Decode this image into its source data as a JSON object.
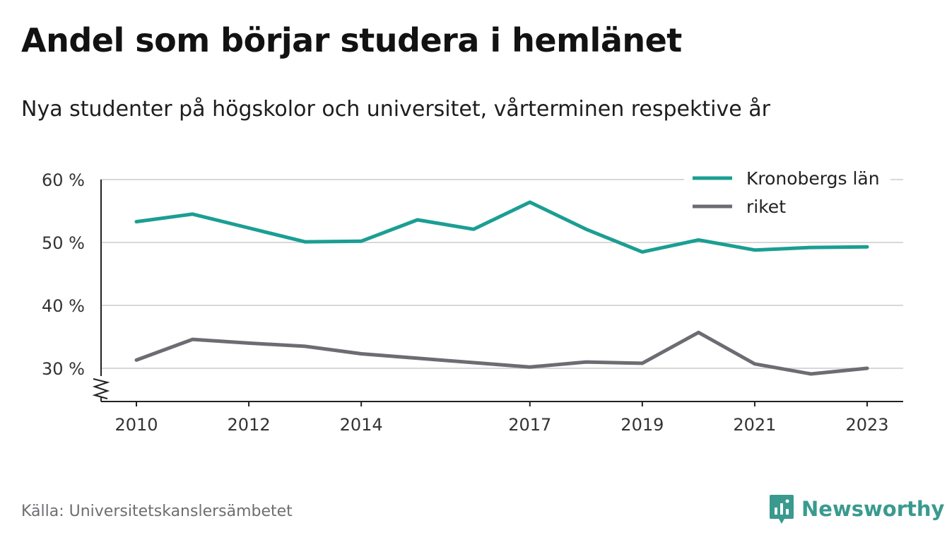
{
  "title": "Andel som börjar studera i hemlänet",
  "subtitle": "Nya studenter på högskolor och universitet, vårterminen respektive år",
  "source": "Källa: Universitetskanslersämbetet",
  "brand": {
    "name": "Newsworthy",
    "icon": "newsworthy-logo-icon",
    "color": "#3a9a8f"
  },
  "chart_data": {
    "type": "line",
    "x": [
      2010,
      2011,
      2012,
      2013,
      2014,
      2015,
      2016,
      2017,
      2018,
      2019,
      2020,
      2021,
      2022,
      2023
    ],
    "xticks": [
      {
        "value": 2010,
        "label": "2010"
      },
      {
        "value": 2012,
        "label": "2012"
      },
      {
        "value": 2014,
        "label": "2014"
      },
      {
        "value": 2017,
        "label": "2017"
      },
      {
        "value": 2019,
        "label": "2019"
      },
      {
        "value": 2021,
        "label": "2021"
      },
      {
        "value": 2023,
        "label": "2023"
      }
    ],
    "yticks": [
      {
        "value": 30,
        "label": "30 %"
      },
      {
        "value": 40,
        "label": "40 %"
      },
      {
        "value": 50,
        "label": "50 %"
      },
      {
        "value": 60,
        "label": "60 %"
      }
    ],
    "ylim": [
      24.5,
      60
    ],
    "xlim": [
      2009.4,
      2023.7
    ],
    "y_axis_break": true,
    "grid": true,
    "legend_position": "top-right",
    "series": [
      {
        "name": "Kronobergs län",
        "color": "#1b9e93",
        "values": [
          53.3,
          54.5,
          52.3,
          50.1,
          50.2,
          53.6,
          52.1,
          56.4,
          52.1,
          48.5,
          50.4,
          48.8,
          49.2,
          49.3
        ]
      },
      {
        "name": "riket",
        "color": "#6c6c72",
        "values": [
          31.3,
          34.6,
          34.0,
          33.5,
          32.3,
          31.6,
          30.9,
          30.2,
          31.0,
          30.8,
          35.7,
          30.7,
          29.1,
          30.0
        ]
      }
    ]
  }
}
